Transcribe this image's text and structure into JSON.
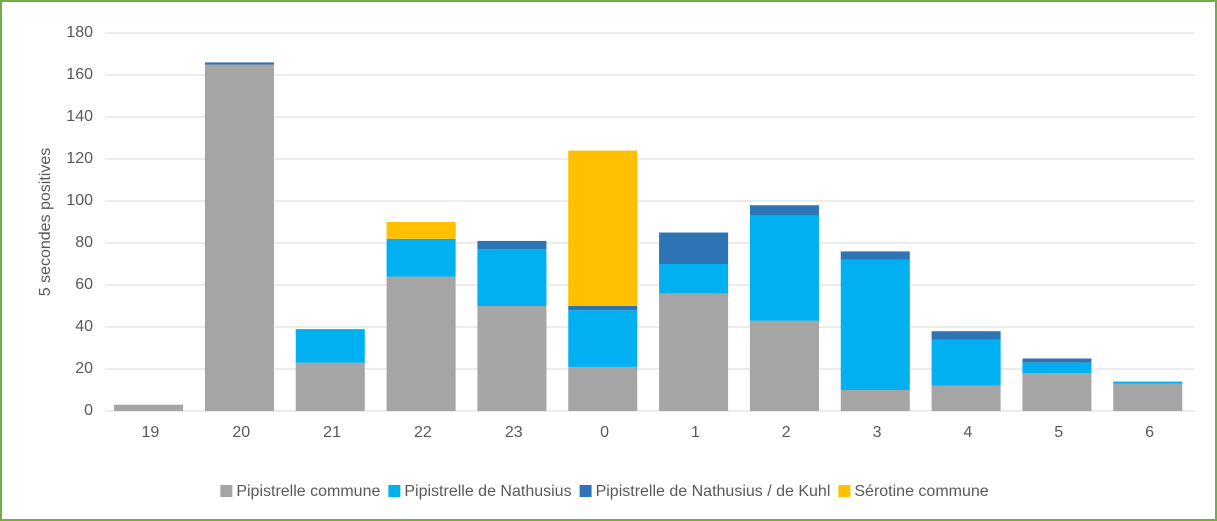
{
  "chart_data": {
    "type": "bar",
    "stacked": true,
    "y_label": "5 secondes positives",
    "categories": [
      "19",
      "20",
      "21",
      "22",
      "23",
      "0",
      "1",
      "2",
      "3",
      "4",
      "5",
      "6"
    ],
    "series": [
      {
        "name": "Pipistrelle commune",
        "color": "#a5a5a5",
        "values": [
          3,
          165,
          23,
          64,
          50,
          21,
          56,
          43,
          10,
          12,
          18,
          13
        ]
      },
      {
        "name": "Pipistrelle de Nathusius",
        "color": "#00b0f0",
        "values": [
          0,
          0,
          16,
          18,
          27,
          27,
          14,
          50,
          62,
          22,
          5,
          1
        ]
      },
      {
        "name": "Pipistrelle de Nathusius / de Kuhl",
        "color": "#2e75b6",
        "values": [
          0,
          1,
          0,
          0,
          4,
          2,
          15,
          5,
          4,
          4,
          2,
          0
        ]
      },
      {
        "name": "Sérotine commune",
        "color": "#ffc000",
        "values": [
          0,
          0,
          0,
          8,
          0,
          74,
          0,
          0,
          0,
          0,
          0,
          0
        ]
      }
    ],
    "ylim": [
      0,
      180
    ],
    "yticks": [
      0,
      20,
      40,
      60,
      80,
      100,
      120,
      140,
      160,
      180
    ],
    "grid": true,
    "legend": "bottom"
  }
}
